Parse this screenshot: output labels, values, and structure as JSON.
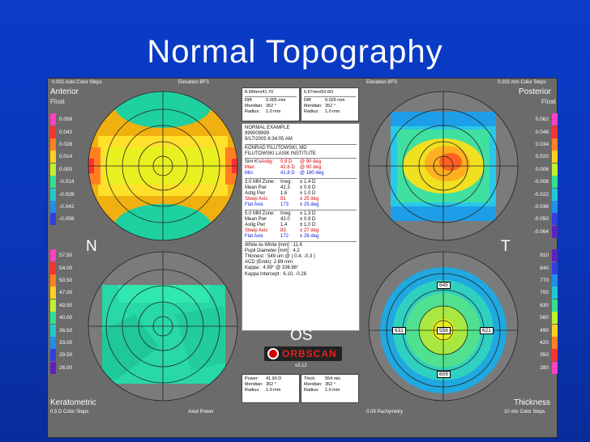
{
  "title": "Normal Topography",
  "top_left_steps": "0.002 Auto Color Steps",
  "elevation_left": "Elevation BFS",
  "elevation_right": "Elevation BFS",
  "top_right_steps": "0.002 mm Color Steps",
  "anterior": "Anterior",
  "anterior_sub": "Float",
  "posterior": "Posterior",
  "posterior_sub": "Float",
  "keratometric": "Keratometric",
  "keratometric_sub": "0.5 D Color Steps",
  "axial_power": "Axial Power",
  "pachymetry": "0.09 Pachymetry",
  "thickness": "Thickness",
  "thickness_sub": "10 mic Color Steps",
  "N": "N",
  "T": "T",
  "OS": "OS",
  "brand": "ORBSCAN",
  "brand_ver": "v3.12",
  "box_tl": {
    "header": "8.99mm/41.70",
    "diff": "Diff:",
    "diff_v": "0.005 mm",
    "merid": "Meridian:",
    "merid_v": "352 °",
    "rad": "Radius:",
    "rad_v": "1.0 mm"
  },
  "box_tr": {
    "header": "6.67mm/50.6D",
    "diff": "Diff:",
    "diff_v": "0.025 mm",
    "merid": "Meridian:",
    "merid_v": "352 °",
    "rad": "Radius:",
    "rad_v": "1.0 mm"
  },
  "box_bl": {
    "power": "Power:",
    "power_v": "41.90 D",
    "merid": "Meridian:",
    "merid_v": "352 °",
    "rad": "Radius:",
    "rad_v": "1.0 mm"
  },
  "box_br": {
    "thick": "Thick:",
    "thick_v": "554 mic",
    "merid": "Meridian:",
    "merid_v": "352 °",
    "rad": "Radius:",
    "rad_v": "1.0 mm"
  },
  "center": {
    "l1": "NORMAL EXAMPLE",
    "l2": "999009999",
    "l3": "9/17/2005 6:34:05 AM",
    "l4": "KONRAD FILUTOWSKI, MD",
    "l5": "FILUTOWSKI LASIK INSTITUTE",
    "sim_k": "Sim K's",
    "astig": "Astig:",
    "astig_v": "0.9 D",
    "astig_a": "@ 90 deg",
    "max": "Max:",
    "max_v": "42.6 D",
    "max_a": "@ 90 deg",
    "min": "Min:",
    "min_v": "41.8 D",
    "min_a": "@ 180 deg",
    "z3": "3.0 MM Zone:",
    "z3_irr": "Irreg:",
    "z3_irr_v": "± 1.4 D",
    "z3_mp": "Mean Pwr",
    "z3_mp_v": "42.3",
    "z3_mp_e": "± 0.9 D",
    "z3_ap": "Astig Pwr",
    "z3_ap_v": "1.6",
    "z3_ap_e": "± 1.0 D",
    "z3_sa": "Steep Axis",
    "z3_sa_v": "81",
    "z3_sa_e": "± 25 deg",
    "z3_fa": "Flat Axis",
    "z3_fa_v": "173",
    "z3_fa_e": "± 25 deg",
    "z5": "5.0 MM Zone:",
    "z5_irr": "Irreg:",
    "z5_irr_v": "± 1.3 D",
    "z5_mp": "Mean Pwr",
    "z5_mp_v": "42.0",
    "z5_mp_e": "± 0.9 D",
    "z5_ap": "Astig Pwr",
    "z5_ap_v": "1.4",
    "z5_ap_e": "± 1.0 D",
    "z5_sa": "Steep Axis",
    "z5_sa_v": "83",
    "z5_sa_e": "± 27 deg",
    "z5_fa": "Flat Axis",
    "z5_fa_v": "172",
    "z5_fa_e": "± 26 deg",
    "w2w": "White-to-White [mm] : 11.6",
    "pupil": "Pupil Diameter [mm] : 4.2",
    "thinnest": "Thinnest : 549 um @ ( 0.4, -0.3 )",
    "acd": "ACD (Endo): 2.89 mm",
    "kappa": "Kappa : 4.99° @ 336.86°",
    "kappa_int": "Kappa Intercept : 6.10, -0.26"
  },
  "legend_tl": [
    "0.056",
    "0.042",
    "0.028",
    "0.014",
    "0.000",
    "-0.014",
    "-0.028",
    "-0.042",
    "-0.056"
  ],
  "legend_bl": [
    "57.50",
    "54.00",
    "50.50",
    "47.00",
    "43.50",
    "40.00",
    "36.50",
    "33.00",
    "29.50",
    "26.00"
  ],
  "legend_tr": [
    "0.062",
    "0.048",
    "0.034",
    "0.020",
    "0.006",
    "-0.008",
    "-0.022",
    "-0.036",
    "-0.050",
    "-0.064"
  ],
  "legend_br": [
    "910",
    "840",
    "770",
    "700",
    "630",
    "560",
    "490",
    "420",
    "350",
    "280"
  ],
  "pachy_values": {
    "top": "645",
    "left": "631",
    "center": "556",
    "right": "621",
    "bottom": "609"
  },
  "colors": {
    "background": "#0a3cc8",
    "panel": "#6b6b6b",
    "red": "#d40000",
    "blue": "#1020d0"
  }
}
